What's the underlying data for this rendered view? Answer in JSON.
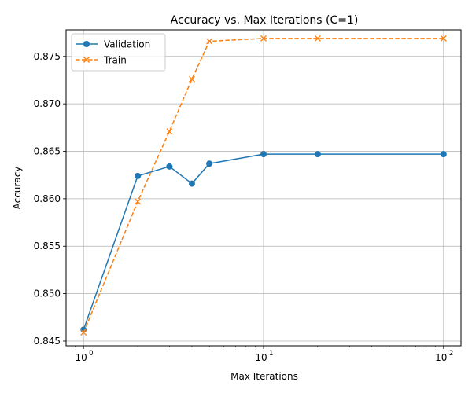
{
  "chart_data": {
    "type": "line",
    "title": "Accuracy vs. Max Iterations (C=1)",
    "xlabel": "Max Iterations",
    "ylabel": "Accuracy",
    "xscale": "log",
    "xlim": [
      0.8,
      125
    ],
    "ylim": [
      0.8445,
      0.8778
    ],
    "x_ticks": [
      {
        "value": 1,
        "base": "10",
        "exp": "0"
      },
      {
        "value": 10,
        "base": "10",
        "exp": "1"
      },
      {
        "value": 100,
        "base": "10",
        "exp": "2"
      }
    ],
    "y_ticks": [
      {
        "value": 0.845,
        "label": "0.845"
      },
      {
        "value": 0.85,
        "label": "0.850"
      },
      {
        "value": 0.855,
        "label": "0.855"
      },
      {
        "value": 0.86,
        "label": "0.860"
      },
      {
        "value": 0.865,
        "label": "0.865"
      },
      {
        "value": 0.87,
        "label": "0.870"
      },
      {
        "value": 0.875,
        "label": "0.875"
      }
    ],
    "grid": true,
    "legend_position": "top-left",
    "x": [
      1,
      2,
      3,
      4,
      5,
      10,
      20,
      100
    ],
    "series": [
      {
        "name": "Validation",
        "color": "#1f77b4",
        "linestyle": "solid",
        "marker": "circle",
        "values": [
          0.8462,
          0.8624,
          0.8634,
          0.8616,
          0.8637,
          0.8647,
          0.8647,
          0.8647
        ]
      },
      {
        "name": "Train",
        "color": "#ff7f0e",
        "linestyle": "dashed",
        "marker": "x",
        "values": [
          0.8459,
          0.8597,
          0.8671,
          0.8726,
          0.8766,
          0.8769,
          0.8769,
          0.8769
        ]
      }
    ]
  }
}
